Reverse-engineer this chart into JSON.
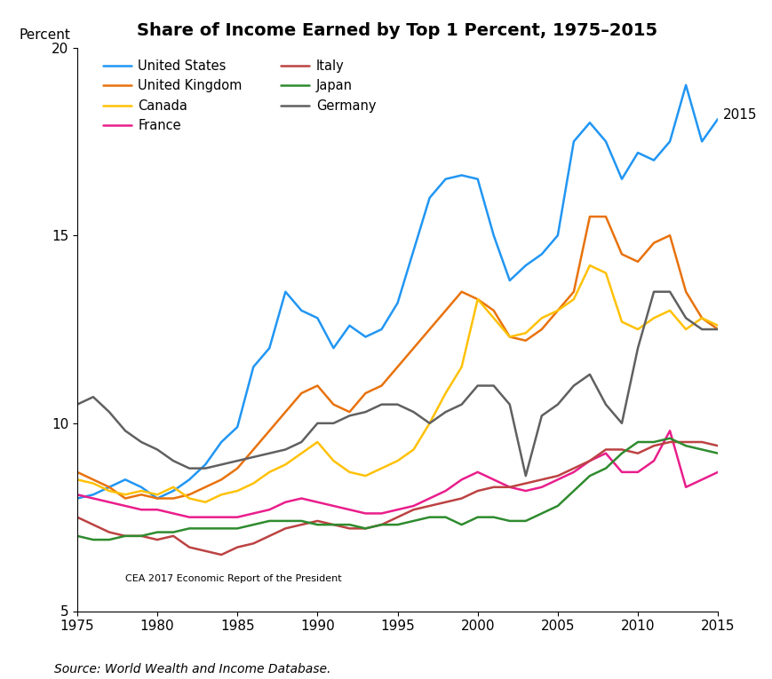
{
  "title": "Share of Income Earned by Top 1 Percent, 1975–2015",
  "ylabel": "Percent",
  "source": "Source: World Wealth and Income Database.",
  "watermark": "CEA 2017 Economic Report of the President",
  "ylim": [
    5,
    20
  ],
  "xlim": [
    1975,
    2015
  ],
  "yticks": [
    5,
    10,
    15,
    20
  ],
  "xticks": [
    1975,
    1980,
    1985,
    1990,
    1995,
    2000,
    2005,
    2010,
    2015
  ],
  "annotation_2015": "2015",
  "series": {
    "United States": {
      "color": "#2196F3",
      "years": [
        1975,
        1976,
        1977,
        1978,
        1979,
        1980,
        1981,
        1982,
        1983,
        1984,
        1985,
        1986,
        1987,
        1988,
        1989,
        1990,
        1991,
        1992,
        1993,
        1994,
        1995,
        1996,
        1997,
        1998,
        1999,
        2000,
        2001,
        2002,
        2003,
        2004,
        2005,
        2006,
        2007,
        2008,
        2009,
        2010,
        2011,
        2012,
        2013,
        2014,
        2015
      ],
      "values": [
        8.0,
        8.1,
        8.3,
        8.5,
        8.3,
        8.0,
        8.2,
        8.5,
        8.9,
        9.5,
        9.9,
        11.5,
        12.0,
        13.5,
        13.0,
        12.8,
        12.0,
        12.6,
        12.3,
        12.5,
        13.2,
        14.6,
        16.0,
        16.5,
        16.6,
        16.5,
        15.0,
        13.8,
        14.2,
        14.5,
        15.0,
        17.5,
        18.0,
        17.5,
        16.5,
        17.2,
        17.0,
        17.5,
        19.0,
        17.5,
        18.1
      ]
    },
    "United Kingdom": {
      "color": "#E8720C",
      "years": [
        1975,
        1976,
        1977,
        1978,
        1979,
        1980,
        1981,
        1982,
        1983,
        1984,
        1985,
        1986,
        1987,
        1988,
        1989,
        1990,
        1991,
        1992,
        1993,
        1994,
        1995,
        1996,
        1997,
        1998,
        1999,
        2000,
        2001,
        2002,
        2003,
        2004,
        2005,
        2006,
        2007,
        2008,
        2009,
        2010,
        2011,
        2012,
        2013,
        2014,
        2015
      ],
      "values": [
        8.7,
        8.5,
        8.3,
        8.0,
        8.1,
        8.0,
        8.0,
        8.1,
        8.3,
        8.5,
        8.8,
        9.3,
        9.8,
        10.3,
        10.8,
        11.0,
        10.5,
        10.3,
        10.8,
        11.0,
        11.5,
        12.0,
        12.5,
        13.0,
        13.5,
        13.3,
        13.0,
        12.3,
        12.2,
        12.5,
        13.0,
        13.5,
        15.5,
        15.5,
        14.5,
        14.3,
        14.8,
        15.0,
        13.5,
        12.8,
        12.5
      ]
    },
    "Canada": {
      "color": "#FFC107",
      "years": [
        1975,
        1976,
        1977,
        1978,
        1979,
        1980,
        1981,
        1982,
        1983,
        1984,
        1985,
        1986,
        1987,
        1988,
        1989,
        1990,
        1991,
        1992,
        1993,
        1994,
        1995,
        1996,
        1997,
        1998,
        1999,
        2000,
        2001,
        2002,
        2003,
        2004,
        2005,
        2006,
        2007,
        2008,
        2009,
        2010,
        2011,
        2012,
        2013,
        2014,
        2015
      ],
      "values": [
        8.5,
        8.4,
        8.2,
        8.1,
        8.2,
        8.1,
        8.3,
        8.0,
        7.9,
        8.1,
        8.2,
        8.4,
        8.7,
        8.9,
        9.2,
        9.5,
        9.0,
        8.7,
        8.6,
        8.8,
        9.0,
        9.3,
        10.0,
        10.8,
        11.5,
        13.3,
        12.8,
        12.3,
        12.4,
        12.8,
        13.0,
        13.3,
        14.2,
        14.0,
        12.7,
        12.5,
        12.8,
        13.0,
        12.5,
        12.8,
        12.6
      ]
    },
    "France": {
      "color": "#E91E8C",
      "years": [
        1975,
        1976,
        1977,
        1978,
        1979,
        1980,
        1981,
        1982,
        1983,
        1984,
        1985,
        1986,
        1987,
        1988,
        1989,
        1990,
        1991,
        1992,
        1993,
        1994,
        1995,
        1996,
        1997,
        1998,
        1999,
        2000,
        2001,
        2002,
        2003,
        2004,
        2005,
        2006,
        2007,
        2008,
        2009,
        2010,
        2011,
        2012,
        2013,
        2014,
        2015
      ],
      "values": [
        8.1,
        8.0,
        7.9,
        7.8,
        7.7,
        7.7,
        7.6,
        7.5,
        7.5,
        7.5,
        7.5,
        7.6,
        7.7,
        7.9,
        8.0,
        7.9,
        7.8,
        7.7,
        7.6,
        7.6,
        7.7,
        7.8,
        8.0,
        8.2,
        8.5,
        8.7,
        8.5,
        8.3,
        8.2,
        8.3,
        8.5,
        8.7,
        9.0,
        9.2,
        8.7,
        8.7,
        9.0,
        9.8,
        8.3,
        8.5,
        8.7
      ]
    },
    "Italy": {
      "color": "#BC4242",
      "years": [
        1975,
        1976,
        1977,
        1978,
        1979,
        1980,
        1981,
        1982,
        1983,
        1984,
        1985,
        1986,
        1987,
        1988,
        1989,
        1990,
        1991,
        1992,
        1993,
        1994,
        1995,
        1996,
        1997,
        1998,
        1999,
        2000,
        2001,
        2002,
        2003,
        2004,
        2005,
        2006,
        2007,
        2008,
        2009,
        2010,
        2011,
        2012,
        2013,
        2014,
        2015
      ],
      "values": [
        7.5,
        7.3,
        7.1,
        7.0,
        7.0,
        6.9,
        7.0,
        6.7,
        6.6,
        6.5,
        6.7,
        6.8,
        7.0,
        7.2,
        7.3,
        7.4,
        7.3,
        7.2,
        7.2,
        7.3,
        7.5,
        7.7,
        7.8,
        7.9,
        8.0,
        8.2,
        8.3,
        8.3,
        8.4,
        8.5,
        8.6,
        8.8,
        9.0,
        9.3,
        9.3,
        9.2,
        9.4,
        9.5,
        9.5,
        9.5,
        9.4
      ]
    },
    "Japan": {
      "color": "#2E8B2E",
      "years": [
        1975,
        1976,
        1977,
        1978,
        1979,
        1980,
        1981,
        1982,
        1983,
        1984,
        1985,
        1986,
        1987,
        1988,
        1989,
        1990,
        1991,
        1992,
        1993,
        1994,
        1995,
        1996,
        1997,
        1998,
        1999,
        2000,
        2001,
        2002,
        2003,
        2004,
        2005,
        2006,
        2007,
        2008,
        2009,
        2010,
        2011,
        2012,
        2013,
        2014,
        2015
      ],
      "values": [
        7.0,
        6.9,
        6.9,
        7.0,
        7.0,
        7.1,
        7.1,
        7.2,
        7.2,
        7.2,
        7.2,
        7.3,
        7.4,
        7.4,
        7.4,
        7.3,
        7.3,
        7.3,
        7.2,
        7.3,
        7.3,
        7.4,
        7.5,
        7.5,
        7.3,
        7.5,
        7.5,
        7.4,
        7.4,
        7.6,
        7.8,
        8.2,
        8.6,
        8.8,
        9.2,
        9.5,
        9.5,
        9.6,
        9.4,
        9.3,
        9.2
      ]
    },
    "Germany": {
      "color": "#606060",
      "years": [
        1975,
        1976,
        1977,
        1978,
        1979,
        1980,
        1981,
        1982,
        1983,
        1984,
        1985,
        1986,
        1987,
        1988,
        1989,
        1990,
        1991,
        1992,
        1993,
        1994,
        1995,
        1996,
        1997,
        1998,
        1999,
        2000,
        2001,
        2002,
        2003,
        2004,
        2005,
        2006,
        2007,
        2008,
        2009,
        2010,
        2011,
        2012,
        2013,
        2014,
        2015
      ],
      "values": [
        10.5,
        10.7,
        10.3,
        9.8,
        9.5,
        9.3,
        9.0,
        8.8,
        8.8,
        8.9,
        9.0,
        9.1,
        9.2,
        9.3,
        9.5,
        10.0,
        10.0,
        10.2,
        10.3,
        10.5,
        10.5,
        10.3,
        10.0,
        10.3,
        10.5,
        11.0,
        11.0,
        10.5,
        8.6,
        10.2,
        10.5,
        11.0,
        11.3,
        10.5,
        10.0,
        12.0,
        13.5,
        13.5,
        12.8,
        12.5,
        12.5
      ]
    }
  },
  "legend_left_col": [
    "United States",
    "Canada",
    "Italy",
    "Germany"
  ],
  "legend_right_col": [
    "United Kingdom",
    "France",
    "Japan"
  ]
}
